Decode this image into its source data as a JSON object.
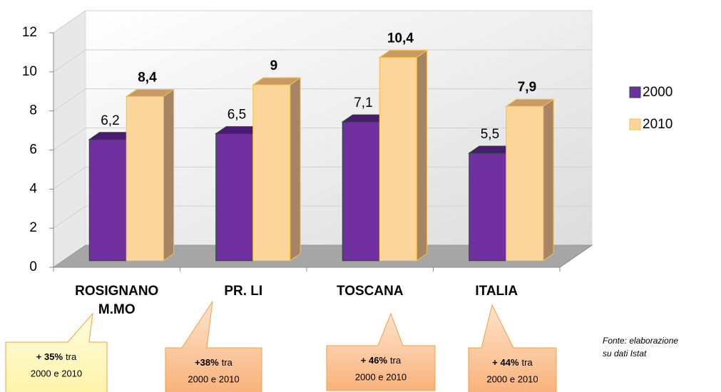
{
  "chart_data": {
    "type": "bar3d",
    "categories": [
      "ROSIGNANO M.MO",
      "PR. LI",
      "TOSCANA",
      "ITALIA"
    ],
    "series": [
      {
        "name": "2000",
        "color": "#7030a0",
        "values": [
          6.2,
          6.5,
          7.1,
          5.5
        ],
        "value_labels": [
          "6,2",
          "6,5",
          "7,1",
          "5,5"
        ]
      },
      {
        "name": "2010",
        "color": "#fbd59a",
        "values": [
          8.4,
          9,
          10.4,
          7.9
        ],
        "value_labels": [
          "8,4",
          "9",
          "10,4",
          "7,9"
        ]
      }
    ],
    "ylim": [
      0,
      12
    ],
    "yticks": [
      0,
      2,
      4,
      6,
      8,
      10,
      12
    ],
    "grid": true,
    "legend": "right",
    "annotations": [
      {
        "highlight": "+ 35%",
        "text": "tra",
        "line2": "2000 e 2010"
      },
      {
        "highlight": "+38%",
        "text": "tra",
        "line2": "2000 e 2010"
      },
      {
        "highlight": "+ 46%",
        "text": "tra",
        "line2": "2000 e 2010"
      },
      {
        "highlight": "+ 44%",
        "text": "tra",
        "line2": "2000 e 2010"
      }
    ],
    "source": [
      "Fonte: elaborazione",
      "su dati Istat"
    ]
  }
}
